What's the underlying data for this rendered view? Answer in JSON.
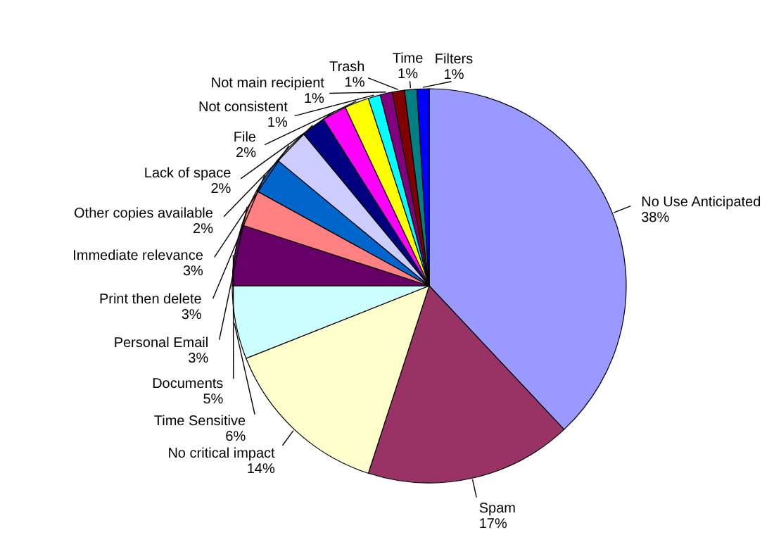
{
  "chart_data": {
    "type": "pie",
    "categories": [
      "No Use Anticipated",
      "Spam",
      "No critical impact",
      "Time Sensitive",
      "Documents",
      "Personal Email",
      "Print then delete",
      "Immediate relevance",
      "Other copies available",
      "Lack of space",
      "File",
      "Not consistent",
      "Not main recipient",
      "Trash",
      "Time",
      "Filters"
    ],
    "values": [
      38,
      17,
      14,
      6,
      5,
      3,
      3,
      3,
      2,
      2,
      2,
      1,
      1,
      1,
      1,
      1
    ],
    "value_labels": [
      "38%",
      "17%",
      "14%",
      "6%",
      "5%",
      "3%",
      "3%",
      "3%",
      "2%",
      "2%",
      "2%",
      "1%",
      "1%",
      "1%",
      "1%",
      "1%"
    ],
    "colors": [
      "#9999ff",
      "#993366",
      "#ffffcc",
      "#ccffff",
      "#660066",
      "#ff8080",
      "#0066cc",
      "#ccccff",
      "#000080",
      "#ff00ff",
      "#ffff00",
      "#00ffff",
      "#800080",
      "#800000",
      "#008080",
      "#0000ff"
    ]
  }
}
